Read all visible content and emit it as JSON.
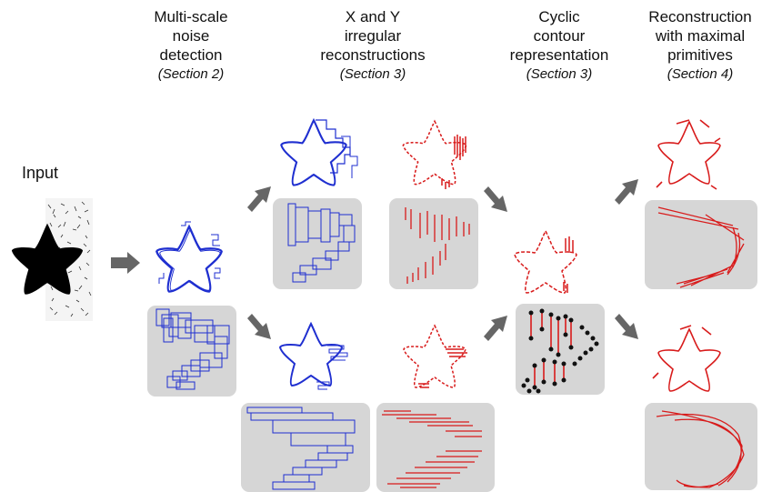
{
  "columns": [
    {
      "title_lines": [
        "Multi-scale",
        "noise",
        "detection"
      ],
      "section": "(Section 2)"
    },
    {
      "title_lines": [
        "X and Y",
        "irregular",
        "reconstructions"
      ],
      "section": "(Section 3)"
    },
    {
      "title_lines": [
        "Cyclic",
        "contour",
        "representation"
      ],
      "section": "(Section 3)"
    },
    {
      "title_lines": [
        "Reconstruction",
        "with maximal",
        "primitives"
      ],
      "section": "(Section 4)"
    }
  ],
  "input_label": "Input",
  "colors": {
    "blue": "#1f2fd0",
    "red": "#d81b1b",
    "panel": "#d6d6d6",
    "arrow": "#666666",
    "black": "#000000"
  }
}
